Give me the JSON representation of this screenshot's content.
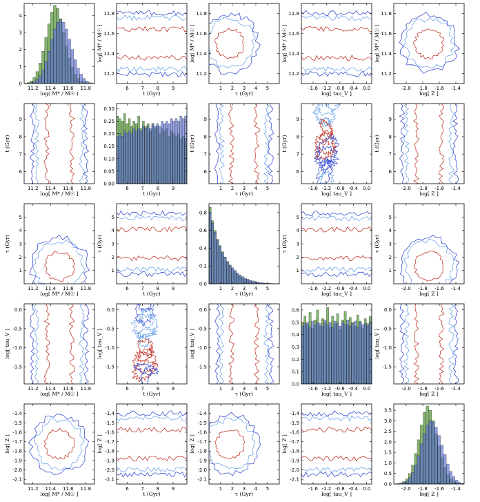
{
  "chart_data": {
    "type": "corner-plot",
    "title": "",
    "parameters": [
      {
        "name": "logM",
        "label": "log[ M* / M☉ ]",
        "diag_xlabel": "log( M* / M☉ )",
        "range": [
          11.1,
          11.9
        ],
        "ticks": [
          11.2,
          11.4,
          11.6,
          11.8
        ],
        "tick_labels": [
          "11.2",
          "11.4",
          "11.6",
          "11.8"
        ]
      },
      {
        "name": "t",
        "label": "t (Gyr)",
        "range": [
          5.3,
          9.9
        ],
        "ticks": [
          6,
          7,
          8,
          9
        ],
        "tick_labels": [
          "6",
          "7",
          "8",
          "9"
        ]
      },
      {
        "name": "tau",
        "label": "τ (Gyr)",
        "range": [
          0,
          6
        ],
        "ticks": [
          1,
          2,
          3,
          4,
          5
        ],
        "tick_labels": [
          "1",
          "2",
          "3",
          "4",
          "5"
        ]
      },
      {
        "name": "logtauV",
        "label": "log[ tau_V ]",
        "range": [
          -1.95,
          0.15
        ],
        "ticks": [
          -1.6,
          -1.2,
          -0.8,
          -0.4,
          0.0
        ],
        "tick_labels": [
          "-1.6",
          "-1.2",
          "-0.8",
          "-0.4",
          "0.0"
        ],
        "y_ticks": [
          -1.5,
          -1.0,
          -0.5,
          0.0
        ],
        "y_tick_labels": [
          "-1.5",
          "-1.0",
          "-0.5",
          "0.0"
        ]
      },
      {
        "name": "logZ",
        "label": "log[ Z ]",
        "range": [
          -2.15,
          -1.3
        ],
        "ticks": [
          -2.0,
          -1.8,
          -1.6,
          -1.4
        ],
        "tick_labels": [
          "-2.0",
          "-1.8",
          "-1.6",
          "-1.4"
        ],
        "y_ticks": [
          -2.1,
          -2.0,
          -1.9,
          -1.8,
          -1.7,
          -1.6,
          -1.5,
          -1.4
        ],
        "y_tick_labels": [
          "-2.1",
          "-2.0",
          "-1.9",
          "-1.8",
          "-1.7",
          "-1.6",
          "-1.5",
          "-1.4"
        ]
      }
    ],
    "histograms": {
      "logM": {
        "ylim": [
          0,
          4.7
        ],
        "y_ticks": [
          0,
          1,
          2,
          3,
          4
        ],
        "y_tick_labels": [
          "0",
          "1",
          "2",
          "3",
          "4"
        ],
        "series": [
          {
            "name": "green",
            "color": "#5b9e3c",
            "values": [
              0.02,
              0.06,
              0.15,
              0.35,
              0.7,
              1.2,
              1.9,
              2.7,
              3.5,
              4.2,
              4.6,
              4.4,
              3.8,
              3.0,
              2.2,
              1.5,
              0.95,
              0.55,
              0.3,
              0.15,
              0.07,
              0.03,
              0.01,
              0.0
            ]
          },
          {
            "name": "blue",
            "color": "#5a6fd8",
            "values": [
              0.0,
              0.02,
              0.05,
              0.12,
              0.25,
              0.45,
              0.8,
              1.3,
              1.9,
              2.6,
              3.2,
              3.6,
              3.75,
              3.6,
              3.2,
              2.6,
              2.0,
              1.4,
              0.9,
              0.55,
              0.3,
              0.15,
              0.06,
              0.02
            ]
          }
        ]
      },
      "t": {
        "ylim": [
          0,
          0.32
        ],
        "y_ticks": [
          0,
          0.05,
          0.1,
          0.15,
          0.2,
          0.25,
          0.3
        ],
        "y_tick_labels": [
          "0.00",
          "0.05",
          "0.10",
          "0.15",
          "0.20",
          "0.25",
          "0.30"
        ],
        "series": [
          {
            "name": "green",
            "color": "#5b9e3c",
            "values": [
              0.27,
              0.26,
              0.25,
              0.28,
              0.24,
              0.26,
              0.23,
              0.25,
              0.24,
              0.27,
              0.22,
              0.25,
              0.23,
              0.24,
              0.21,
              0.24,
              0.22,
              0.23,
              0.2,
              0.22,
              0.21,
              0.22,
              0.19,
              0.21,
              0.2,
              0.19,
              0.2,
              0.18,
              0.19,
              0.18
            ]
          },
          {
            "name": "blue",
            "color": "#5a6fd8",
            "values": [
              0.19,
              0.2,
              0.19,
              0.21,
              0.2,
              0.21,
              0.2,
              0.22,
              0.21,
              0.22,
              0.21,
              0.23,
              0.22,
              0.23,
              0.22,
              0.24,
              0.23,
              0.24,
              0.23,
              0.25,
              0.24,
              0.25,
              0.24,
              0.26,
              0.25,
              0.26,
              0.25,
              0.27,
              0.26,
              0.27
            ]
          }
        ]
      },
      "tau": {
        "ylim": [
          0,
          0.9
        ],
        "y_ticks": [
          0,
          0.2,
          0.4,
          0.6,
          0.8
        ],
        "y_tick_labels": [
          "0.0",
          "0.2",
          "0.4",
          "0.6",
          "0.8"
        ],
        "series": [
          {
            "name": "green",
            "color": "#5b9e3c",
            "values": [
              0.86,
              0.71,
              0.6,
              0.5,
              0.43,
              0.36,
              0.3,
              0.25,
              0.21,
              0.17,
              0.14,
              0.11,
              0.09,
              0.07,
              0.055,
              0.042,
              0.032,
              0.024,
              0.017,
              0.012,
              0.008,
              0.006,
              0.004,
              0.003,
              0.002,
              0.001,
              0.001,
              0.0
            ]
          },
          {
            "name": "blue",
            "color": "#5a6fd8",
            "values": [
              0.8,
              0.68,
              0.58,
              0.49,
              0.42,
              0.35,
              0.3,
              0.25,
              0.21,
              0.18,
              0.15,
              0.12,
              0.1,
              0.08,
              0.065,
              0.052,
              0.041,
              0.032,
              0.025,
              0.019,
              0.014,
              0.01,
              0.008,
              0.006,
              0.004,
              0.003,
              0.002,
              0.001
            ]
          }
        ]
      },
      "logtauV": {
        "ylim": [
          0,
          0.65
        ],
        "y_ticks": [
          0,
          0.1,
          0.2,
          0.3,
          0.4,
          0.5,
          0.6
        ],
        "y_tick_labels": [
          "0.0",
          "0.1",
          "0.2",
          "0.3",
          "0.4",
          "0.5",
          "0.6"
        ],
        "series": [
          {
            "name": "green",
            "color": "#5b9e3c",
            "values": [
              0.5,
              0.55,
              0.48,
              0.58,
              0.45,
              0.52,
              0.6,
              0.47,
              0.53,
              0.5,
              0.62,
              0.46,
              0.55,
              0.49,
              0.57,
              0.44,
              0.52,
              0.59,
              0.48,
              0.54,
              0.5,
              0.47,
              0.56,
              0.51,
              0.45,
              0.53,
              0.49,
              0.55
            ]
          },
          {
            "name": "blue",
            "color": "#5a6fd8",
            "values": [
              0.47,
              0.49,
              0.5,
              0.46,
              0.51,
              0.48,
              0.5,
              0.49,
              0.47,
              0.52,
              0.48,
              0.5,
              0.46,
              0.51,
              0.49,
              0.47,
              0.5,
              0.48,
              0.52,
              0.47,
              0.49,
              0.51,
              0.46,
              0.5,
              0.48,
              0.49,
              0.47,
              0.5
            ]
          }
        ]
      },
      "logZ": {
        "ylim": [
          0,
          3.8
        ],
        "y_ticks": [
          0,
          0.5,
          1,
          1.5,
          2,
          2.5,
          3,
          3.5
        ],
        "y_tick_labels": [
          "0.0",
          "0.5",
          "1.0",
          "1.5",
          "2.0",
          "2.5",
          "3.0",
          "3.5"
        ],
        "series": [
          {
            "name": "green",
            "color": "#5b9e3c",
            "values": [
              0.0,
              0.02,
              0.05,
              0.12,
              0.25,
              0.5,
              0.9,
              1.45,
              2.1,
              2.8,
              3.4,
              3.7,
              3.5,
              3.0,
              2.4,
              1.8,
              1.25,
              0.8,
              0.45,
              0.25,
              0.12,
              0.05,
              0.02,
              0.0
            ]
          },
          {
            "name": "blue",
            "color": "#5a6fd8",
            "values": [
              0.0,
              0.01,
              0.03,
              0.07,
              0.15,
              0.3,
              0.55,
              0.9,
              1.35,
              1.9,
              2.4,
              2.8,
              3.0,
              2.95,
              2.7,
              2.3,
              1.85,
              1.4,
              0.95,
              0.6,
              0.35,
              0.18,
              0.08,
              0.03
            ]
          }
        ]
      }
    },
    "contour_levels": [
      {
        "name": "inner",
        "color": "#c0392b"
      },
      {
        "name": "middle",
        "color": "#6fa6e8"
      },
      {
        "name": "outer",
        "color": "#3b4fd0"
      }
    ]
  }
}
